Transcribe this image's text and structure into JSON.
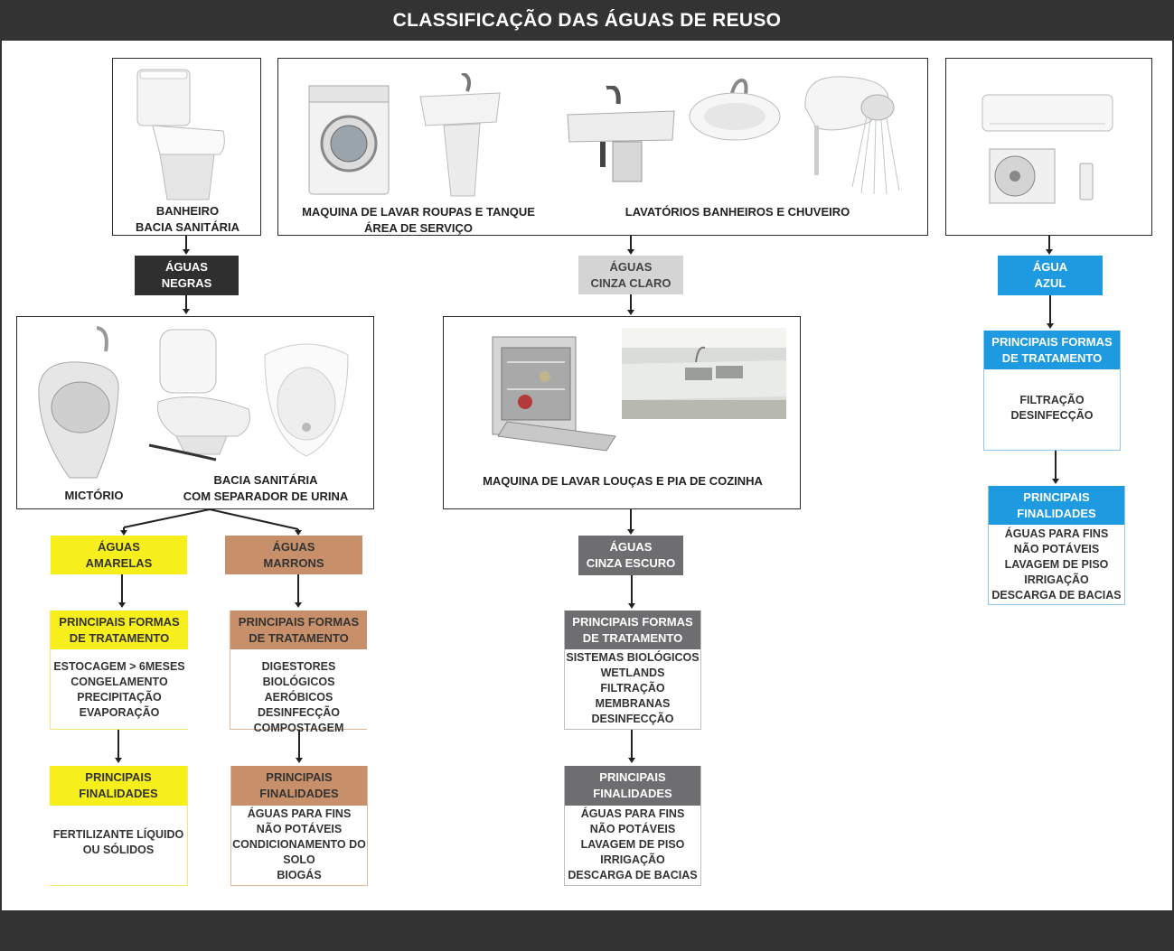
{
  "title": "CLASSIFICAÇÃO DAS ÁGUAS DE REUSO",
  "sources": {
    "bathroom": {
      "line1": "BANHEIRO",
      "line2": "BACIA SANITÁRIA"
    },
    "laundry": {
      "line1": "MAQUINA DE LAVAR ROUPAS E TANQUE",
      "line2": "ÁREA DE SERVIÇO"
    },
    "lavatories": {
      "line1": "LAVATÓRIOS BANHEIROS E CHUVEIRO"
    },
    "kitchen": {
      "line1": "MAQUINA DE LAVAR LOUÇAS E PIA DE COZINHA"
    },
    "urinals": {
      "urinal": "MICTÓRIO",
      "line1": "BACIA SANITÁRIA",
      "line2": "COM SEPARADOR DE URINA"
    }
  },
  "water_types": {
    "negras": {
      "line1": "ÁGUAS",
      "line2": "NEGRAS",
      "color": "#2f2f2f"
    },
    "cinza_claro": {
      "line1": "ÁGUAS",
      "line2": "CINZA CLARO",
      "color": "#d4d4d4"
    },
    "azul": {
      "line1": "ÁGUA",
      "line2": "AZUL",
      "color": "#1e9be0"
    },
    "amarelas": {
      "line1": "ÁGUAS",
      "line2": "AMARELAS",
      "color": "#f7ef1c"
    },
    "marrons": {
      "line1": "ÁGUAS",
      "line2": "MARRONS",
      "color": "#c8906a"
    },
    "cinza_escuro": {
      "line1": "ÁGUAS",
      "line2": "CINZA ESCURO",
      "color": "#6e6e70"
    }
  },
  "treatment_header": {
    "line1": "PRINCIPAIS FORMAS",
    "line2": "DE TRATAMENTO"
  },
  "purpose_header": {
    "line1": "PRINCIPAIS",
    "line2": "FINALIDADES"
  },
  "treatments": {
    "amarelas": [
      "ESTOCAGEM > 6MESES",
      "CONGELAMENTO",
      "PRECIPITAÇÃO",
      "EVAPORAÇÃO"
    ],
    "marrons": [
      "DIGESTORES BIOLÓGICOS",
      "AERÓBICOS",
      "DESINFECÇÃO",
      "COMPOSTAGEM"
    ],
    "cinza_escuro": [
      "SISTEMAS BIOLÓGICOS",
      "WETLANDS",
      "FILTRAÇÃO",
      "MEMBRANAS",
      "DESINFECÇÃO"
    ],
    "azul": [
      "FILTRAÇÃO",
      "DESINFECÇÃO"
    ]
  },
  "purposes": {
    "amarelas": [
      "FERTILIZANTE LÍQUIDO",
      "OU SÓLIDOS"
    ],
    "marrons": [
      "ÁGUAS PARA FINS",
      "NÃO POTÁVEIS",
      "CONDICIONAMENTO DO",
      "SOLO",
      "BIOGÁS"
    ],
    "cinza_escuro": [
      "ÁGUAS PARA FINS",
      "NÃO POTÁVEIS",
      "LAVAGEM DE PISO",
      "IRRIGAÇÃO",
      "DESCARGA DE BACIAS"
    ],
    "azul": [
      "ÁGUAS PARA FINS",
      "NÃO POTÁVEIS",
      "LAVAGEM DE PISO",
      "IRRIGAÇÃO",
      "DESCARGA DE BACIAS"
    ]
  }
}
